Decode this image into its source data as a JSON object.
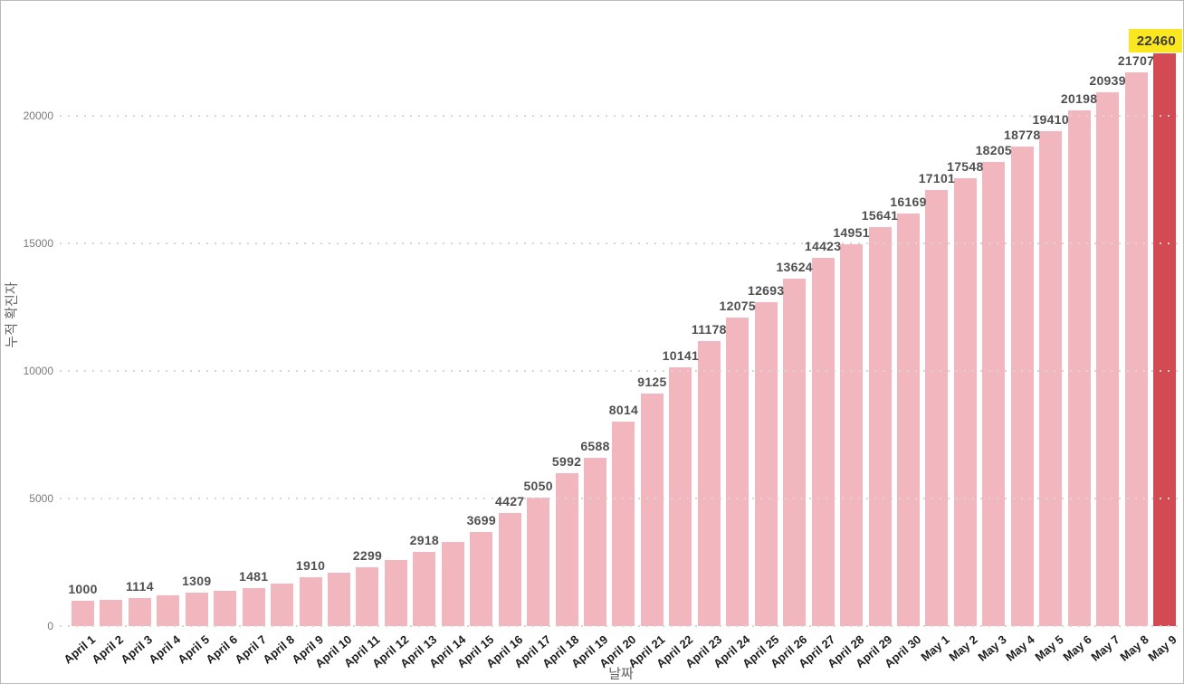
{
  "chart_data": {
    "type": "bar",
    "title": "",
    "xlabel": "날짜",
    "ylabel": "누적 확진자",
    "categories": [
      "April 1",
      "April 2",
      "April 3",
      "April 4",
      "April 5",
      "April 6",
      "April 7",
      "April 8",
      "April 9",
      "April 10",
      "April 11",
      "April 12",
      "April 13",
      "April 14",
      "April 15",
      "April 16",
      "April 17",
      "April 18",
      "April 19",
      "April 20",
      "April 21",
      "April 22",
      "April 23",
      "April 24",
      "April 25",
      "April 26",
      "April 27",
      "April 28",
      "April 29",
      "April 30",
      "May 1",
      "May 2",
      "May 3",
      "May 4",
      "May 5",
      "May 6",
      "May 7",
      "May 8",
      "May 9"
    ],
    "values": [
      1000,
      1040,
      1114,
      1190,
      1309,
      1390,
      1481,
      1650,
      1910,
      2090,
      2299,
      2590,
      2918,
      3290,
      3699,
      4427,
      5050,
      5992,
      6588,
      8014,
      9125,
      10141,
      11178,
      12075,
      12693,
      13624,
      14423,
      14951,
      15641,
      16169,
      17101,
      17548,
      18205,
      18778,
      19410,
      20198,
      20939,
      21707,
      22460
    ],
    "data_labels_shown": [
      true,
      false,
      true,
      false,
      true,
      false,
      true,
      false,
      true,
      false,
      true,
      false,
      true,
      false,
      true,
      true,
      true,
      true,
      true,
      true,
      true,
      true,
      true,
      true,
      true,
      true,
      true,
      true,
      true,
      true,
      true,
      true,
      true,
      true,
      true,
      true,
      true,
      true,
      true
    ],
    "estimated_indices": [
      1,
      3,
      5,
      7,
      9,
      11,
      13
    ],
    "note": "Bars at estimated_indices show no data label in the image; their values are estimated from bar heights.",
    "yticks": [
      0,
      5000,
      10000,
      15000,
      20000
    ],
    "ylim": [
      0,
      23400
    ],
    "grid": "horizontal dotted lines at yticks, drawn over bars",
    "legend": "none",
    "highlight": {
      "index": 38,
      "category": "May 9",
      "value": 22460,
      "style": "red bar with yellow value tag at top right"
    },
    "colors": {
      "bar": "#f2b6be",
      "highlight_bar": "#d44a53",
      "highlight_tag_bg": "#fbe71f",
      "highlight_tag_text": "#3c3c3c",
      "value_label": "#4f4f4f",
      "y_tick_label": "#7a7a7a",
      "x_tick_label": "#1c1c1c",
      "axis_title": "#666666",
      "gridline": "#d6d6d6",
      "page_border": "#b9b9b9",
      "background": "#ffffff"
    }
  }
}
